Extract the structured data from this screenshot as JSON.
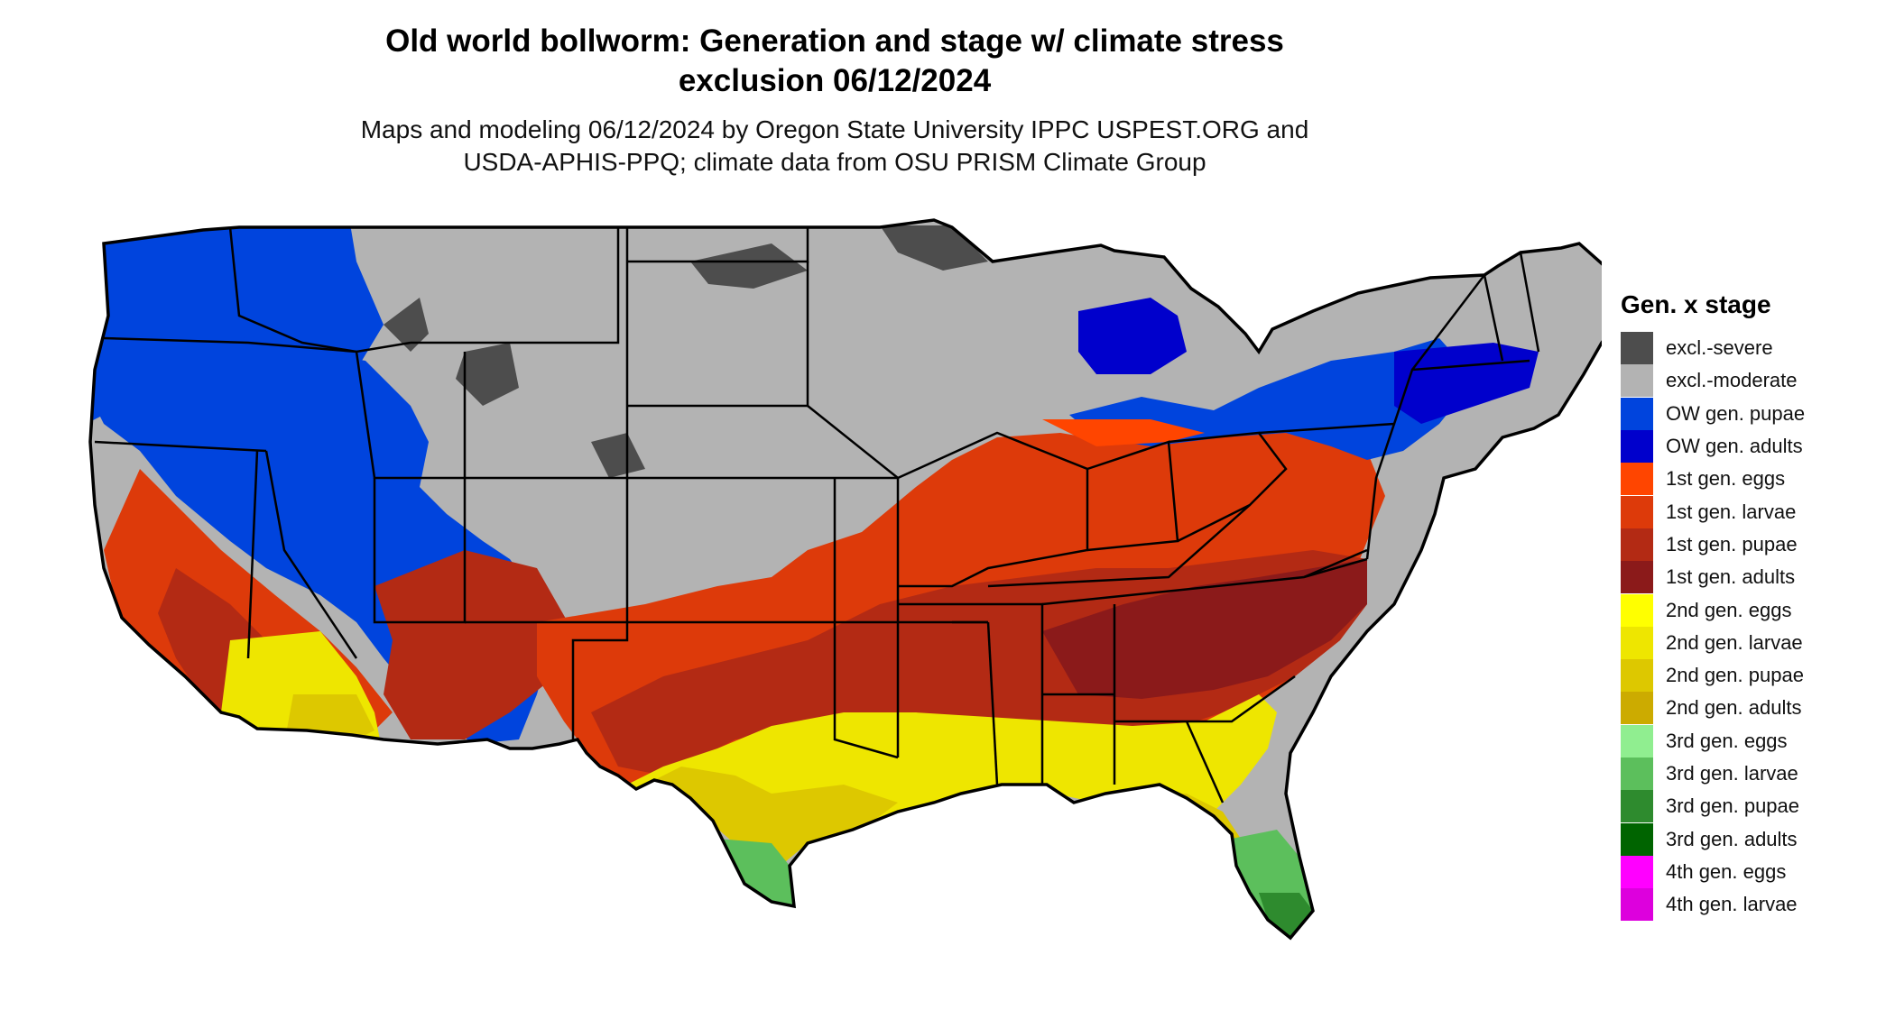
{
  "title": {
    "line1": "Old world bollworm: Generation and stage w/ climate stress",
    "line2": "exclusion 06/12/2024"
  },
  "subtitle": {
    "line1": "Maps and modeling 06/12/2024 by Oregon State University IPPC USPEST.ORG and",
    "line2": "USDA-APHIS-PPQ; climate data from OSU PRISM Climate Group"
  },
  "legend": {
    "title": "Gen. x stage",
    "items": [
      {
        "label": "excl.-severe",
        "color": "#4d4d4d"
      },
      {
        "label": "excl.-moderate",
        "color": "#b3b3b3"
      },
      {
        "label": "OW gen. pupae",
        "color": "#0044dd"
      },
      {
        "label": "OW gen. adults",
        "color": "#0000cc"
      },
      {
        "label": "1st gen. eggs",
        "color": "#ff4500"
      },
      {
        "label": "1st gen. larvae",
        "color": "#dd3a0a"
      },
      {
        "label": "1st gen. pupae",
        "color": "#b32a14"
      },
      {
        "label": "1st gen. adults",
        "color": "#8b1a1a"
      },
      {
        "label": "2nd gen. eggs",
        "color": "#ffff00"
      },
      {
        "label": "2nd gen. larvae",
        "color": "#eee600"
      },
      {
        "label": "2nd gen. pupae",
        "color": "#ddc800"
      },
      {
        "label": "2nd gen. adults",
        "color": "#ccab00"
      },
      {
        "label": "3rd gen. eggs",
        "color": "#90ee90"
      },
      {
        "label": "3rd gen. larvae",
        "color": "#5cbf5c"
      },
      {
        "label": "3rd gen. pupae",
        "color": "#2e8b2e"
      },
      {
        "label": "3rd gen. adults",
        "color": "#006400"
      },
      {
        "label": "4th gen. eggs",
        "color": "#ff00ff"
      },
      {
        "label": "4th gen. larvae",
        "color": "#dd00dd"
      }
    ]
  }
}
